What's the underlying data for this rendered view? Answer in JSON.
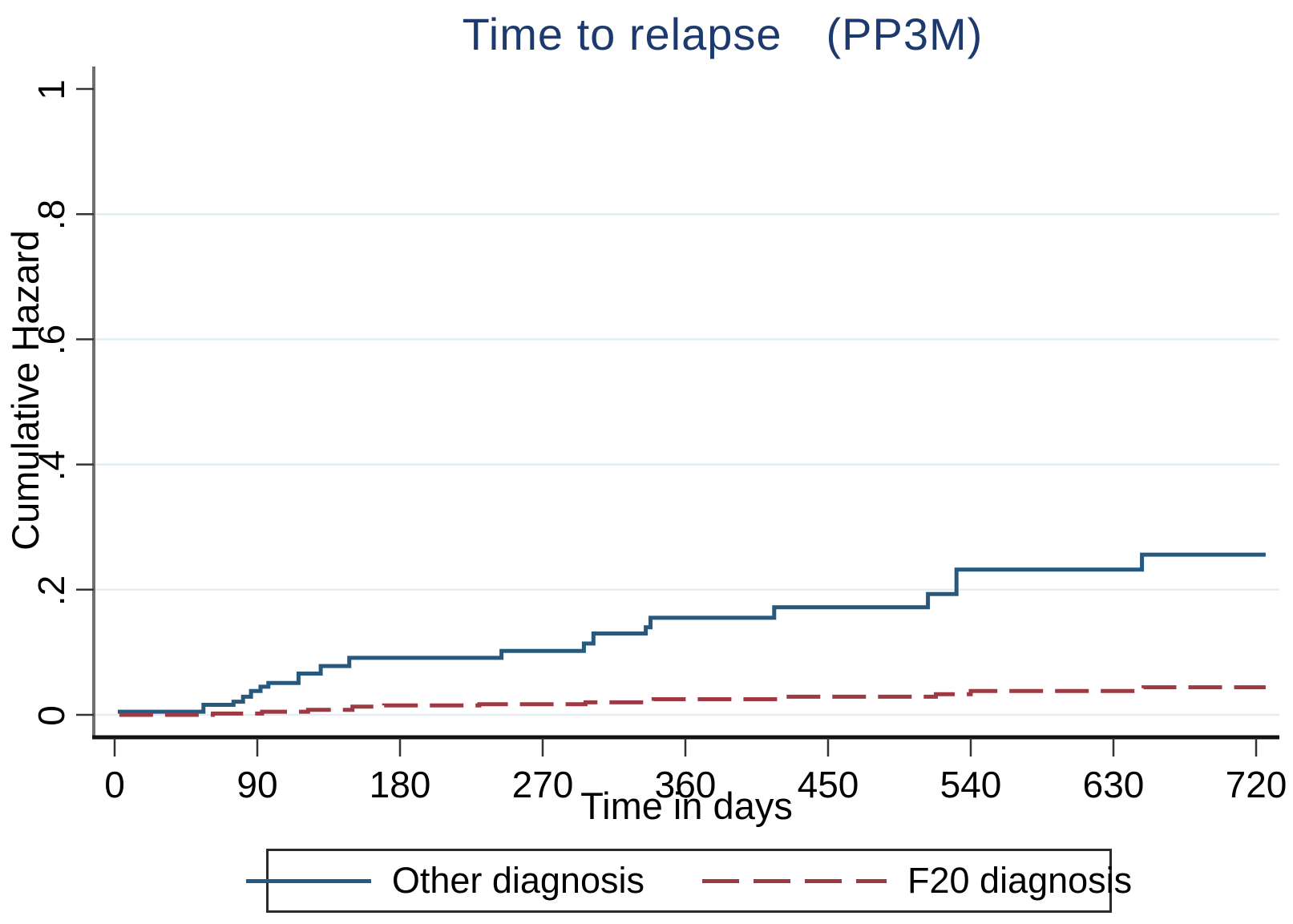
{
  "title": {
    "main": "Time to relapse",
    "suffix": "(PP3M)"
  },
  "axes": {
    "x_label": "Time in days",
    "y_label": "Cumulative Hazard"
  },
  "colors": {
    "title_text": "#1c3a6e",
    "grid": "#e3edf2",
    "y_axis": "#6f6f6f",
    "x_axis": "#111111",
    "tick": "#333333",
    "legend_border": "#2b2b2b"
  },
  "chart_data": {
    "type": "line",
    "subtype": "step-cumulative-hazard",
    "title": "Time to relapse (PP3M)",
    "xlabel": "Time in days",
    "ylabel": "Cumulative Hazard",
    "xlim": [
      0,
      735
    ],
    "ylim": [
      0,
      1
    ],
    "x_ticks": [
      0,
      90,
      180,
      270,
      360,
      450,
      540,
      630,
      720
    ],
    "x_tick_labels": [
      "0",
      "90",
      "180",
      "270",
      "360",
      "450",
      "540",
      "630",
      "720"
    ],
    "y_ticks": [
      0,
      0.2,
      0.4,
      0.6,
      0.8,
      1
    ],
    "y_tick_labels": [
      "0",
      ".2",
      ".4",
      ".6",
      ".8",
      "1"
    ],
    "grid_values": [
      0,
      0.2,
      0.4,
      0.6,
      0.8
    ],
    "grid": "horizontal",
    "legend_position": "bottom",
    "series": [
      {
        "name": "Other diagnosis",
        "color": "#27587d",
        "dash": "solid",
        "points": [
          [
            2,
            0.005
          ],
          [
            56,
            0.016
          ],
          [
            75,
            0.021
          ],
          [
            81,
            0.029
          ],
          [
            86,
            0.038
          ],
          [
            92,
            0.045
          ],
          [
            97,
            0.051
          ],
          [
            116,
            0.066
          ],
          [
            130,
            0.078
          ],
          [
            148,
            0.091
          ],
          [
            244,
            0.102
          ],
          [
            296,
            0.114
          ],
          [
            302,
            0.13
          ],
          [
            335,
            0.14
          ],
          [
            338,
            0.155
          ],
          [
            416,
            0.172
          ],
          [
            513,
            0.193
          ],
          [
            531,
            0.232
          ],
          [
            648,
            0.256
          ]
        ],
        "end_x": 726
      },
      {
        "name": "F20 diagnosis",
        "color": "#9d3a44",
        "dash": "dashed",
        "points": [
          [
            3,
            0
          ],
          [
            62,
            0.002
          ],
          [
            93,
            0.005
          ],
          [
            122,
            0.008
          ],
          [
            150,
            0.013
          ],
          [
            170,
            0.015
          ],
          [
            230,
            0.017
          ],
          [
            297,
            0.02
          ],
          [
            340,
            0.025
          ],
          [
            420,
            0.029
          ],
          [
            518,
            0.033
          ],
          [
            540,
            0.038
          ],
          [
            649,
            0.044
          ]
        ],
        "end_x": 726
      }
    ]
  }
}
